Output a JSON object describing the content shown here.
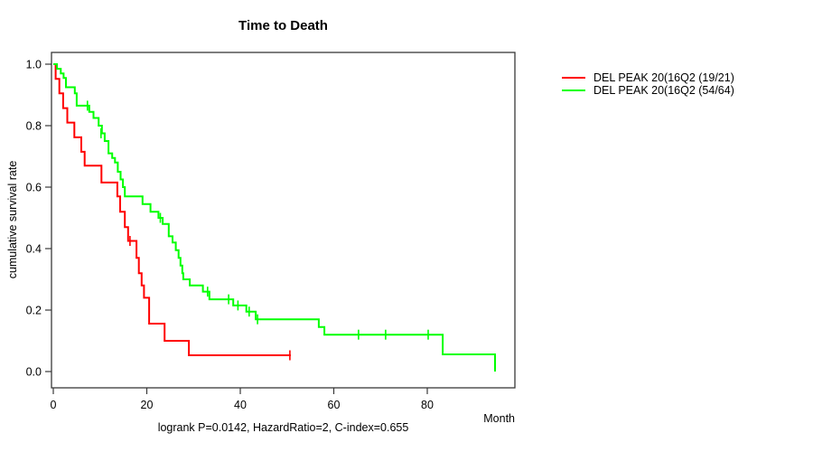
{
  "title": "Time to Death",
  "axes": {
    "x_label": "Month",
    "y_label": "cumulative survival rate"
  },
  "footer_annotation": "logrank P=0.0142, HazardRatio=2, C-index=0.655",
  "chart_data": {
    "type": "line",
    "subtype": "kaplan-meier-step-curve",
    "title": "Time to Death",
    "xlabel": "Month",
    "ylabel": "cumulative survival rate",
    "xlim": [
      0,
      95
    ],
    "ylim": [
      0.0,
      1.0
    ],
    "x_ticks": [
      0,
      20,
      40,
      60,
      80
    ],
    "y_ticks": [
      0.0,
      0.2,
      0.4,
      0.6,
      0.8,
      1.0
    ],
    "y_tick_labels": [
      "0.0",
      "0.2",
      "0.4",
      "0.6",
      "0.8",
      "1.0"
    ],
    "grid": false,
    "legend_position": "right-outside",
    "axis_color": "#383838",
    "annotation": "logrank P=0.0142, HazardRatio=2, C-index=0.655",
    "series": [
      {
        "name": "DEL PEAK 20(16Q2 (19/21)",
        "color": "#ff0000",
        "steps": [
          [
            0,
            1.0
          ],
          [
            0.5,
            0.952
          ],
          [
            1.3,
            0.905
          ],
          [
            2.1,
            0.857
          ],
          [
            3.0,
            0.81
          ],
          [
            4.5,
            0.762
          ],
          [
            6.0,
            0.715
          ],
          [
            6.7,
            0.67
          ],
          [
            10.3,
            0.615
          ],
          [
            13.7,
            0.57
          ],
          [
            14.3,
            0.52
          ],
          [
            15.3,
            0.47
          ],
          [
            16.0,
            0.425
          ],
          [
            17.8,
            0.37
          ],
          [
            18.3,
            0.32
          ],
          [
            18.9,
            0.28
          ],
          [
            19.4,
            0.24
          ],
          [
            20.5,
            0.156
          ],
          [
            23.8,
            0.1
          ],
          [
            29.0,
            0.053
          ],
          [
            50.8,
            0.053
          ]
        ],
        "censor_marks": [
          [
            16.4,
            0.425
          ],
          [
            50.6,
            0.053
          ]
        ]
      },
      {
        "name": "DEL PEAK 20(16Q2 (54/64)",
        "color": "#00ff00",
        "steps": [
          [
            0,
            1.0
          ],
          [
            0.8,
            0.985
          ],
          [
            1.6,
            0.97
          ],
          [
            2.2,
            0.955
          ],
          [
            2.7,
            0.925
          ],
          [
            4.6,
            0.905
          ],
          [
            5.0,
            0.865
          ],
          [
            7.7,
            0.845
          ],
          [
            8.6,
            0.825
          ],
          [
            9.7,
            0.8
          ],
          [
            10.4,
            0.775
          ],
          [
            11.0,
            0.75
          ],
          [
            11.8,
            0.71
          ],
          [
            12.6,
            0.695
          ],
          [
            13.2,
            0.68
          ],
          [
            13.8,
            0.65
          ],
          [
            14.4,
            0.625
          ],
          [
            14.9,
            0.6
          ],
          [
            15.3,
            0.57
          ],
          [
            19.1,
            0.545
          ],
          [
            20.8,
            0.52
          ],
          [
            22.5,
            0.5
          ],
          [
            23.4,
            0.48
          ],
          [
            24.7,
            0.44
          ],
          [
            25.5,
            0.42
          ],
          [
            26.2,
            0.395
          ],
          [
            26.8,
            0.37
          ],
          [
            27.2,
            0.345
          ],
          [
            27.6,
            0.32
          ],
          [
            27.8,
            0.3
          ],
          [
            29.2,
            0.28
          ],
          [
            32.0,
            0.26
          ],
          [
            33.4,
            0.235
          ],
          [
            38.5,
            0.215
          ],
          [
            41.3,
            0.195
          ],
          [
            43.3,
            0.17
          ],
          [
            56.8,
            0.145
          ],
          [
            58.0,
            0.12
          ],
          [
            83.3,
            0.056
          ],
          [
            94.5,
            0.0
          ]
        ],
        "censor_marks": [
          [
            7.3,
            0.865
          ],
          [
            10.2,
            0.775
          ],
          [
            22.9,
            0.5
          ],
          [
            33.0,
            0.26
          ],
          [
            37.5,
            0.235
          ],
          [
            39.5,
            0.215
          ],
          [
            41.9,
            0.195
          ],
          [
            43.7,
            0.17
          ],
          [
            65.3,
            0.12
          ],
          [
            71.1,
            0.12
          ],
          [
            80.2,
            0.12
          ]
        ]
      }
    ]
  }
}
